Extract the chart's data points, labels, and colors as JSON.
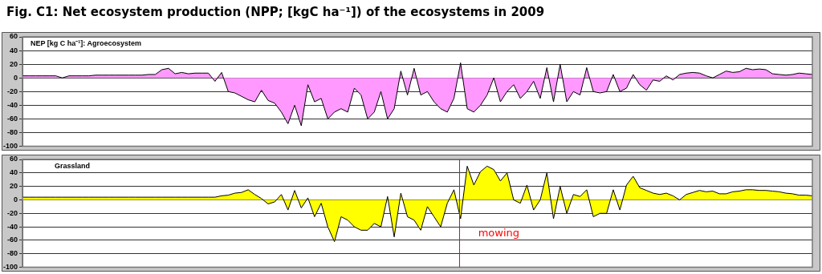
{
  "chart_data": [
    {
      "type": "area",
      "title": "Fig. C1: Net ecosystem production (NPP; [kgC ha⁻¹]) of the ecosystems in 2009",
      "annotations": [
        "NEP [kg C ha⁻¹]: Agroecosystem"
      ],
      "categories": [
        null,
        null,
        null,
        null,
        null,
        null,
        null,
        null,
        null,
        null,
        null,
        null,
        null,
        null,
        null,
        null,
        null,
        null,
        null,
        null,
        null,
        null,
        null,
        null,
        null,
        null,
        null,
        null,
        null,
        null,
        null,
        null,
        null,
        null,
        null,
        null,
        null,
        null,
        null,
        null,
        null,
        null,
        null,
        null,
        null,
        null,
        null,
        null,
        null,
        null,
        null,
        null,
        null,
        null,
        null,
        null,
        null,
        null,
        null,
        null,
        null,
        null,
        null,
        null,
        null,
        null,
        null,
        null,
        null,
        null,
        null,
        null,
        null,
        null,
        null,
        null,
        null,
        null,
        null,
        null,
        null,
        null,
        null,
        null,
        null,
        null,
        null,
        null,
        null,
        null,
        null,
        null,
        null,
        null,
        null,
        null,
        null,
        null,
        null,
        null,
        null,
        null,
        null,
        null,
        null,
        null,
        null,
        null,
        null,
        null,
        null,
        null,
        null,
        null,
        null,
        null,
        null,
        null,
        null,
        null
      ],
      "series": [
        {
          "color": "#ff99ff",
          "values": [
            3,
            3,
            3,
            3,
            3,
            3,
            0,
            3,
            3,
            3,
            3,
            4,
            4,
            4,
            4,
            4,
            4,
            4,
            4,
            5,
            5,
            12,
            14,
            6,
            8,
            6,
            7,
            7,
            7,
            -5,
            8,
            -20,
            -22,
            -27,
            -32,
            -35,
            -18,
            -33,
            -37,
            -50,
            -67,
            -40,
            -70,
            -10,
            -35,
            -30,
            -60,
            -50,
            -45,
            -50,
            -15,
            -25,
            -60,
            -50,
            -20,
            -60,
            -45,
            10,
            -25,
            14,
            -25,
            -20,
            -35,
            -45,
            -50,
            -30,
            22,
            -45,
            -50,
            -40,
            -25,
            0,
            -35,
            -20,
            -10,
            -30,
            -20,
            -5,
            -30,
            15,
            -35,
            20,
            -35,
            -20,
            -25,
            15,
            -20,
            -22,
            -20,
            5,
            -20,
            -15,
            5,
            -10,
            -18,
            -3,
            -5,
            3,
            -3,
            5,
            7,
            8,
            7,
            3,
            0,
            5,
            10,
            8,
            9,
            14,
            12,
            13,
            12,
            6,
            5,
            4,
            5,
            7,
            6,
            5
          ]
        }
      ],
      "ylim": [
        -100,
        60
      ],
      "yticks": [
        -100,
        -80,
        -60,
        -40,
        -20,
        0,
        20,
        40,
        60
      ],
      "grid": "y",
      "tick_labels": "y",
      "legend": false
    },
    {
      "type": "area",
      "annotations": [
        "Grassland",
        "mowing"
      ],
      "categories": [
        null,
        null,
        null,
        null,
        null,
        null,
        null,
        null,
        null,
        null,
        null,
        null,
        null,
        null,
        null,
        null,
        null,
        null,
        null,
        null,
        null,
        null,
        null,
        null,
        null,
        null,
        null,
        null,
        null,
        null,
        null,
        null,
        null,
        null,
        null,
        null,
        null,
        null,
        null,
        null,
        null,
        null,
        null,
        null,
        null,
        null,
        null,
        null,
        null,
        null,
        null,
        null,
        null,
        null,
        null,
        null,
        null,
        null,
        null,
        null,
        null,
        null,
        null,
        null,
        null,
        null,
        null,
        null,
        null,
        null,
        null,
        null,
        null,
        null,
        null,
        null,
        null,
        null,
        null,
        null,
        null,
        null,
        null,
        null,
        null,
        null,
        null,
        null,
        null,
        null,
        null,
        null,
        null,
        null,
        null,
        null,
        null,
        null,
        null,
        null,
        null,
        null,
        null,
        null,
        null,
        null,
        null,
        null,
        null,
        null,
        null,
        null,
        null,
        null,
        null,
        null,
        null,
        null,
        null,
        null
      ],
      "series": [
        {
          "color": "#ffff00",
          "values": [
            4,
            4,
            4,
            4,
            4,
            4,
            4,
            4,
            4,
            4,
            4,
            4,
            4,
            4,
            4,
            4,
            4,
            4,
            4,
            4,
            4,
            4,
            4,
            4,
            4,
            4,
            4,
            4,
            4,
            4,
            6,
            7,
            10,
            11,
            15,
            8,
            2,
            -6,
            -3,
            8,
            -15,
            14,
            -12,
            3,
            -25,
            -5,
            -40,
            -62,
            -25,
            -30,
            -40,
            -45,
            -45,
            -35,
            -40,
            5,
            -55,
            10,
            -25,
            -30,
            -45,
            -10,
            -25,
            -40,
            -5,
            15,
            -28,
            50,
            22,
            42,
            50,
            45,
            28,
            40,
            0,
            -5,
            22,
            -15,
            0,
            40,
            -28,
            20,
            -20,
            8,
            5,
            15,
            -25,
            -20,
            -20,
            15,
            -15,
            22,
            35,
            18,
            14,
            10,
            8,
            10,
            6,
            0,
            8,
            11,
            14,
            12,
            13,
            9,
            9,
            12,
            13,
            15,
            15,
            14,
            14,
            13,
            12,
            10,
            9,
            7,
            7,
            6
          ]
        }
      ],
      "ylim": [
        -100,
        60
      ],
      "yticks": [
        -100,
        -80,
        -60,
        -40,
        -20,
        0,
        20,
        40,
        60
      ],
      "grid": "y",
      "tick_labels": "y",
      "legend": false
    }
  ]
}
